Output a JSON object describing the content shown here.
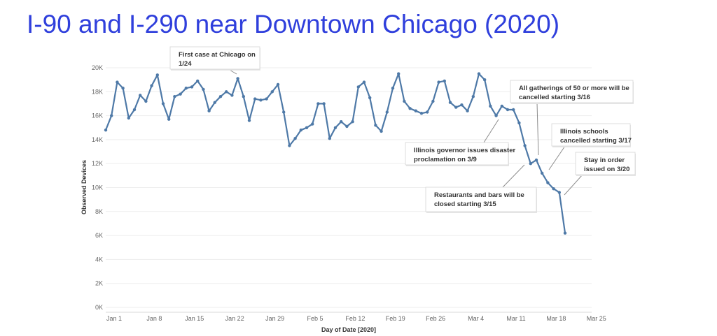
{
  "page": {
    "title": "I-90 and I-290 near Downtown Chicago (2020)"
  },
  "chart_data": {
    "type": "line",
    "title": "I-90 and I-290 near Downtown Chicago (2020)",
    "xlabel": "Day of Date [2020]",
    "ylabel": "Observed Devices",
    "ylim": [
      0,
      20000
    ],
    "x_start": "2020-01-01",
    "x_end": "2020-03-25",
    "grid": true,
    "line_color": "#4e79a7",
    "x_ticks": [
      {
        "label": "Jan 1",
        "date": "2020-01-01"
      },
      {
        "label": "Jan 8",
        "date": "2020-01-08"
      },
      {
        "label": "Jan 15",
        "date": "2020-01-15"
      },
      {
        "label": "Jan 22",
        "date": "2020-01-22"
      },
      {
        "label": "Jan 29",
        "date": "2020-01-29"
      },
      {
        "label": "Feb 5",
        "date": "2020-02-05"
      },
      {
        "label": "Feb 12",
        "date": "2020-02-12"
      },
      {
        "label": "Feb 19",
        "date": "2020-02-19"
      },
      {
        "label": "Feb 26",
        "date": "2020-02-26"
      },
      {
        "label": "Mar 4",
        "date": "2020-03-04"
      },
      {
        "label": "Mar 11",
        "date": "2020-03-11"
      },
      {
        "label": "Mar 18",
        "date": "2020-03-18"
      },
      {
        "label": "Mar 25",
        "date": "2020-03-25"
      }
    ],
    "y_ticks": [
      {
        "label": "0K",
        "value": 0
      },
      {
        "label": "2K",
        "value": 2000
      },
      {
        "label": "4K",
        "value": 4000
      },
      {
        "label": "6K",
        "value": 6000
      },
      {
        "label": "8K",
        "value": 8000
      },
      {
        "label": "10K",
        "value": 10000
      },
      {
        "label": "12K",
        "value": 12000
      },
      {
        "label": "14K",
        "value": 14000
      },
      {
        "label": "16K",
        "value": 16000
      },
      {
        "label": "18K",
        "value": 18000
      },
      {
        "label": "20K",
        "value": 20000
      }
    ],
    "series": [
      {
        "start_date": "2020-01-01",
        "values": [
          14800,
          16000,
          18800,
          18300,
          15800,
          16500,
          17700,
          17200,
          18500,
          19400,
          17000,
          15700,
          17600,
          17800,
          18300,
          18400,
          18900,
          18200,
          16400,
          17100,
          17600,
          18000,
          17700,
          19100,
          17600,
          15600,
          17400,
          17300,
          17400,
          18000,
          18600,
          16300,
          13500,
          14100,
          14800,
          15000,
          15300,
          17000,
          17000,
          14100,
          15000,
          15500,
          15100,
          15500,
          18400,
          18800,
          17500,
          15200,
          14700,
          16300,
          18300,
          19500,
          17200,
          16600,
          16400,
          16200,
          16300,
          17200,
          18800,
          18900,
          17100,
          16700,
          16900,
          16400,
          17600,
          19500,
          19000,
          16800,
          16000,
          16800,
          16500,
          16500,
          15400,
          13500,
          12000,
          12300,
          11200,
          10400,
          9900,
          9600,
          6200
        ]
      }
    ],
    "annotations": [
      {
        "lines": [
          "First case at Chicago on",
          "1/24"
        ]
      },
      {
        "lines": [
          "Illinois governor issues disaster",
          "proclamation on 3/9"
        ]
      },
      {
        "lines": [
          "All gatherings of 50 or more will be",
          "cancelled starting 3/16"
        ]
      },
      {
        "lines": [
          "Illinois schools",
          "cancelled starting 3/17"
        ]
      },
      {
        "lines": [
          "Stay in order",
          "issued on 3/20"
        ]
      },
      {
        "lines": [
          "Restaurants and bars will be",
          "closed starting 3/15"
        ]
      }
    ]
  }
}
